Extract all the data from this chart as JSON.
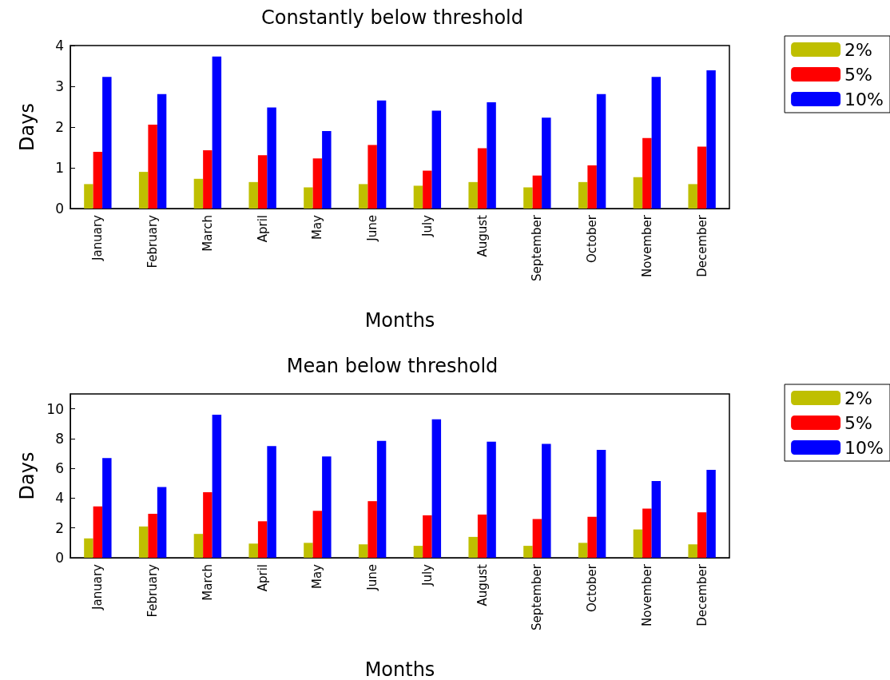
{
  "chart_data": [
    {
      "type": "bar",
      "title": "Constantly below threshold",
      "xlabel": "Months",
      "ylabel": "Days",
      "categories": [
        "January",
        "February",
        "March",
        "April",
        "May",
        "June",
        "July",
        "August",
        "September",
        "October",
        "November",
        "December"
      ],
      "series": [
        {
          "name": "2%",
          "color": "#bfbf00",
          "values": [
            0.6,
            0.9,
            0.73,
            0.65,
            0.52,
            0.6,
            0.56,
            0.65,
            0.52,
            0.65,
            0.77,
            0.6
          ]
        },
        {
          "name": "5%",
          "color": "#ff0000",
          "values": [
            1.39,
            2.06,
            1.43,
            1.31,
            1.23,
            1.56,
            0.93,
            1.48,
            0.81,
            1.06,
            1.73,
            1.52
          ]
        },
        {
          "name": "10%",
          "color": "#0000ff",
          "values": [
            3.23,
            2.81,
            3.73,
            2.48,
            1.9,
            2.65,
            2.4,
            2.61,
            2.23,
            2.81,
            3.23,
            3.39
          ]
        }
      ],
      "ylim": [
        0,
        4
      ],
      "yticks": [
        0,
        1,
        2,
        3,
        4
      ],
      "grid": false,
      "legend": "top right"
    },
    {
      "type": "bar",
      "title": "Mean below threshold",
      "xlabel": "Months",
      "ylabel": "Days",
      "categories": [
        "January",
        "February",
        "March",
        "April",
        "May",
        "June",
        "July",
        "August",
        "September",
        "October",
        "November",
        "December"
      ],
      "series": [
        {
          "name": "2%",
          "color": "#bfbf00",
          "values": [
            1.3,
            2.1,
            1.6,
            0.95,
            1.0,
            0.9,
            0.8,
            1.4,
            0.8,
            1.0,
            1.9,
            0.9
          ]
        },
        {
          "name": "5%",
          "color": "#ff0000",
          "values": [
            3.45,
            2.95,
            4.4,
            2.45,
            3.15,
            3.8,
            2.85,
            2.9,
            2.6,
            2.75,
            3.3,
            3.05
          ]
        },
        {
          "name": "10%",
          "color": "#0000ff",
          "values": [
            6.7,
            4.75,
            9.6,
            7.5,
            6.8,
            7.85,
            9.3,
            7.8,
            7.65,
            7.25,
            5.15,
            5.9
          ]
        }
      ],
      "ylim": [
        0,
        11
      ],
      "yticks": [
        0,
        2,
        4,
        6,
        8,
        10
      ],
      "grid": false,
      "legend": "top right"
    }
  ]
}
